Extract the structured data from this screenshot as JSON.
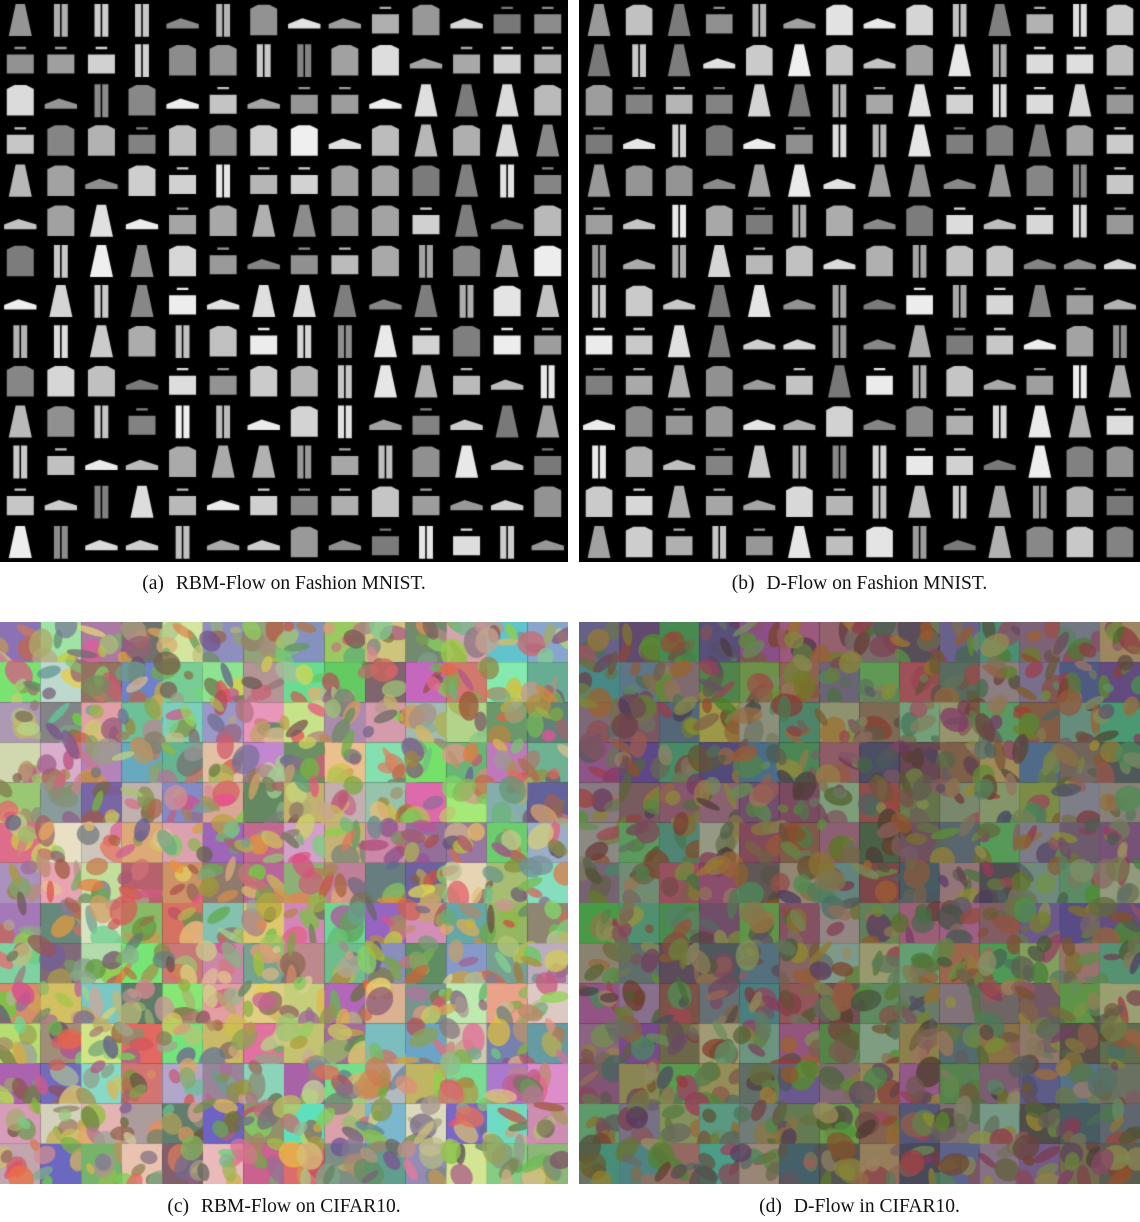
{
  "figure": {
    "panels": [
      {
        "id": "a",
        "tag": "(a)",
        "caption": "RBM-Flow on Fashion MNIST.",
        "content": "grid of generated grayscale Fashion MNIST samples (garments, shoes, bags) on black background",
        "grid": {
          "rows": 14,
          "cols": 14
        },
        "palette": "grayscale"
      },
      {
        "id": "b",
        "tag": "(b)",
        "caption": "D-Flow on Fashion MNIST.",
        "content": "grid of generated grayscale Fashion MNIST samples (garments, shoes, bags) on black background",
        "grid": {
          "rows": 14,
          "cols": 14
        },
        "palette": "grayscale"
      },
      {
        "id": "c",
        "tag": "(c)",
        "caption": "RBM-Flow on CIFAR10.",
        "content": "grid of generated color CIFAR10 image samples",
        "grid": {
          "rows": 14,
          "cols": 14
        },
        "palette": "color"
      },
      {
        "id": "d",
        "tag": "(d)",
        "caption": "D-Flow in CIFAR10.",
        "content": "grid of generated color CIFAR10 image samples (darker, muted tones)",
        "grid": {
          "rows": 14,
          "cols": 14
        },
        "palette": "color-muted"
      }
    ]
  }
}
